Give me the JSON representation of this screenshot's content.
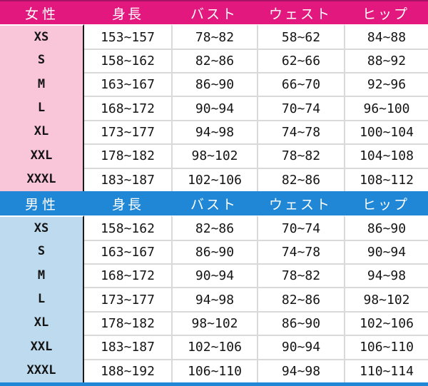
{
  "chart_data": [
    {
      "type": "table",
      "id": "women",
      "group_label": "女性",
      "columns": [
        "身長",
        "バスト",
        "ウェスト",
        "ヒップ"
      ],
      "rows": [
        {
          "size": "XS",
          "cells": [
            "153~157",
            "78~82",
            "58~62",
            "84~88"
          ]
        },
        {
          "size": "S",
          "cells": [
            "158~162",
            "82~86",
            "62~66",
            "88~92"
          ]
        },
        {
          "size": "M",
          "cells": [
            "163~167",
            "86~90",
            "66~70",
            "92~96"
          ]
        },
        {
          "size": "L",
          "cells": [
            "168~172",
            "90~94",
            "70~74",
            "96~100"
          ]
        },
        {
          "size": "XL",
          "cells": [
            "173~177",
            "94~98",
            "74~78",
            "100~104"
          ]
        },
        {
          "size": "XXL",
          "cells": [
            "178~182",
            "98~102",
            "78~82",
            "104~108"
          ]
        },
        {
          "size": "XXXL",
          "cells": [
            "183~187",
            "102~106",
            "82~86",
            "108~112"
          ]
        }
      ]
    },
    {
      "type": "table",
      "id": "men",
      "group_label": "男性",
      "columns": [
        "身長",
        "バスト",
        "ウェスト",
        "ヒップ"
      ],
      "rows": [
        {
          "size": "XS",
          "cells": [
            "158~162",
            "82~86",
            "70~74",
            "86~90"
          ]
        },
        {
          "size": "S",
          "cells": [
            "163~167",
            "86~90",
            "74~78",
            "90~94"
          ]
        },
        {
          "size": "M",
          "cells": [
            "168~172",
            "90~94",
            "78~82",
            "94~98"
          ]
        },
        {
          "size": "L",
          "cells": [
            "173~177",
            "94~98",
            "82~86",
            "98~102"
          ]
        },
        {
          "size": "XL",
          "cells": [
            "178~182",
            "98~102",
            "86~90",
            "102~106"
          ]
        },
        {
          "size": "XXL",
          "cells": [
            "183~187",
            "102~106",
            "90~94",
            "106~110"
          ]
        },
        {
          "size": "XXXL",
          "cells": [
            "188~192",
            "106~110",
            "94~98",
            "110~114"
          ]
        }
      ]
    }
  ],
  "theme": {
    "women_header_bg": "#e3187f",
    "women_size_bg": "#f8c5d9",
    "men_header_bg": "#1f87d5",
    "men_size_bg": "#bedaee",
    "grid_line": "#d9d9d9",
    "divider_line": "#1b1b1b",
    "header_text": "#ffffff",
    "body_text": "#141414",
    "bottom_bar": "#1f87d5"
  }
}
